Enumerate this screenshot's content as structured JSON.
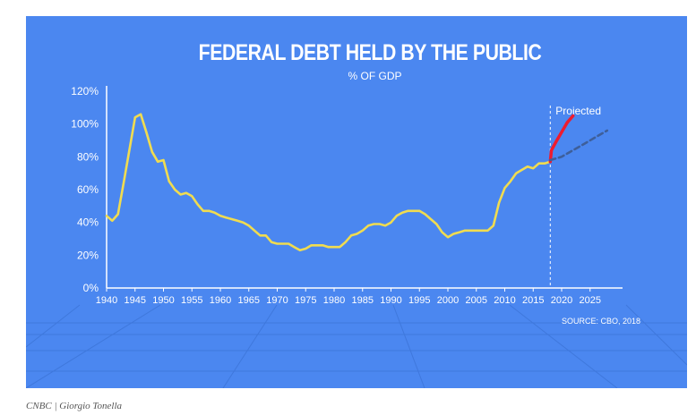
{
  "chart_data": {
    "type": "line",
    "title": "FEDERAL DEBT HELD BY THE PUBLIC",
    "subtitle": "% OF GDP",
    "xlabel": "",
    "ylabel": "",
    "xlim": [
      1940,
      2028
    ],
    "ylim": [
      0,
      120
    ],
    "x_ticks": [
      1940,
      1945,
      1950,
      1955,
      1960,
      1965,
      1970,
      1975,
      1980,
      1985,
      1990,
      1995,
      2000,
      2005,
      2010,
      2015,
      2020,
      2025
    ],
    "x_tick_labels": [
      "1940",
      "1945",
      "1950",
      "1955",
      "1960",
      "1965",
      "1970",
      "1975",
      "1980",
      "1985",
      "1990",
      "1995",
      "2000",
      "2005",
      "2010",
      "2015",
      "2020",
      "2025"
    ],
    "y_ticks": [
      0,
      20,
      40,
      60,
      80,
      100,
      120
    ],
    "y_tick_labels": [
      "0%",
      "20%",
      "40%",
      "60%",
      "80%",
      "100%",
      "120%"
    ],
    "grid": false,
    "projection_marker_year": 2018,
    "annotation": "Projected",
    "source": "SOURCE: CBO, 2018",
    "series": [
      {
        "color": "#f0dc50",
        "x": [
          1940,
          1941,
          1942,
          1943,
          1944,
          1945,
          1946,
          1947,
          1948,
          1949,
          1950,
          1951,
          1952,
          1953,
          1954,
          1955,
          1956,
          1957,
          1958,
          1959,
          1960,
          1961,
          1962,
          1963,
          1964,
          1965,
          1966,
          1967,
          1968,
          1969,
          1970,
          1971,
          1972,
          1973,
          1974,
          1975,
          1976,
          1977,
          1978,
          1979,
          1980,
          1981,
          1982,
          1983,
          1984,
          1985,
          1986,
          1987,
          1988,
          1989,
          1990,
          1991,
          1992,
          1993,
          1994,
          1995,
          1996,
          1997,
          1998,
          1999,
          2000,
          2001,
          2002,
          2003,
          2004,
          2005,
          2006,
          2007,
          2008,
          2009,
          2010,
          2011,
          2012,
          2013,
          2014,
          2015,
          2016,
          2017,
          2018
        ],
        "values": [
          44,
          41,
          45,
          64,
          84,
          104,
          106,
          95,
          83,
          77,
          78,
          65,
          60,
          57,
          58,
          56,
          51,
          47,
          47,
          46,
          44,
          43,
          42,
          41,
          40,
          38,
          35,
          32,
          32,
          28,
          27,
          27,
          27,
          25,
          23,
          24,
          26,
          26,
          26,
          25,
          25,
          25,
          28,
          32,
          33,
          35,
          38,
          39,
          39,
          38,
          40,
          44,
          46,
          47,
          47,
          47,
          45,
          42,
          39,
          34,
          31,
          33,
          34,
          35,
          35,
          35,
          35,
          35,
          38,
          52,
          61,
          65,
          70,
          72,
          74,
          73,
          76,
          76,
          77
        ]
      },
      {
        "color": "#ee1b2e",
        "x": [
          2018,
          2018.2,
          2019,
          2020,
          2021,
          2022
        ],
        "values": [
          77,
          84,
          89,
          95,
          101,
          105
        ]
      },
      {
        "color": "#3e5f9a",
        "dashed": true,
        "x": [
          2018,
          2020,
          2022,
          2024,
          2026,
          2028
        ],
        "values": [
          78,
          80,
          84,
          88,
          92,
          96
        ]
      }
    ]
  },
  "source_label": "SOURCE: CBO, 2018",
  "credit": "CNBC | Giorgio Tonella"
}
